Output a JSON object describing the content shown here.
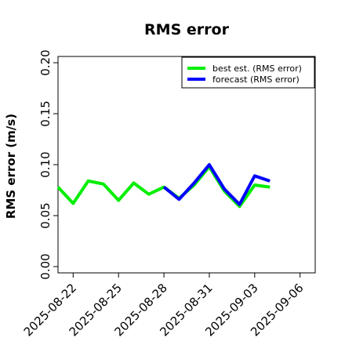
{
  "chart_data": {
    "type": "line",
    "title": "RMS error",
    "ylabel": "RMS error (m/s)",
    "xlabel": "",
    "ylim": [
      0,
      0.21
    ],
    "yticks": [
      "0.00",
      "0.05",
      "0.10",
      "0.15",
      "0.20"
    ],
    "ytick_values": [
      0,
      0.05,
      0.1,
      0.15,
      0.2
    ],
    "xlim": [
      "2025-08-21",
      "2025-09-07"
    ],
    "xtick_labels": [
      "2025-08-22",
      "2025-08-25",
      "2025-08-28",
      "2025-08-31",
      "2025-09-03",
      "2025-09-06"
    ],
    "highlight_tick": "2025-08-28",
    "highlight_color": "#228B22",
    "legend_position": "top-right",
    "grid": false,
    "series": [
      {
        "name": "best est. (RMS error)",
        "color": "#00ee00",
        "x": [
          "2025-08-21",
          "2025-08-22",
          "2025-08-23",
          "2025-08-24",
          "2025-08-25",
          "2025-08-26",
          "2025-08-27",
          "2025-08-28",
          "2025-08-29",
          "2025-08-30",
          "2025-08-31",
          "2025-09-01",
          "2025-09-02",
          "2025-09-03",
          "2025-09-04"
        ],
        "values": [
          0.078,
          0.062,
          0.084,
          0.081,
          0.065,
          0.082,
          0.071,
          0.078,
          0.067,
          0.08,
          0.098,
          0.074,
          0.059,
          0.08,
          0.078
        ]
      },
      {
        "name": "forecast (RMS error)",
        "color": "#0000ff",
        "x": [
          "2025-08-28",
          "2025-08-29",
          "2025-08-30",
          "2025-08-31",
          "2025-09-01",
          "2025-09-02",
          "2025-09-03",
          "2025-09-04"
        ],
        "values": [
          0.078,
          0.066,
          0.082,
          0.1,
          0.076,
          0.061,
          0.089,
          0.084
        ]
      }
    ]
  }
}
